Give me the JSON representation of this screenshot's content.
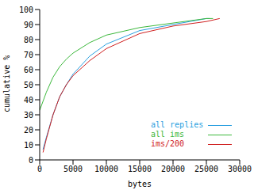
{
  "chart_data": {
    "type": "line",
    "x_label": "bytes",
    "y_label": "cumulative %",
    "xlim": [
      0,
      30000
    ],
    "xticks": [
      0,
      5000,
      10000,
      15000,
      20000,
      25000,
      30000
    ],
    "ylim": [
      0,
      100
    ],
    "yticks": [
      0,
      10,
      20,
      30,
      40,
      50,
      60,
      70,
      80,
      90,
      100
    ],
    "legend": "lower right",
    "series": [
      {
        "name": "all replies",
        "color": "#2aa0e0",
        "x": [
          500,
          1000,
          2000,
          3000,
          4000,
          5000,
          7500,
          10000,
          15000,
          20000,
          25000,
          25500
        ],
        "values": [
          7,
          15,
          30,
          42,
          50,
          57,
          69,
          77,
          86,
          90,
          94,
          94
        ]
      },
      {
        "name": "all ims",
        "color": "#3cb83c",
        "x": [
          0,
          1000,
          2000,
          3000,
          4000,
          5000,
          7500,
          10000,
          15000,
          20000,
          25000,
          26000
        ],
        "values": [
          33,
          45,
          55,
          62,
          67,
          71,
          78,
          83,
          88,
          91,
          94,
          94
        ]
      },
      {
        "name": "ims/200",
        "color": "#d02020",
        "x": [
          500,
          1000,
          2000,
          3000,
          4000,
          5000,
          7500,
          10000,
          15000,
          20000,
          25000,
          27000
        ],
        "values": [
          5,
          14,
          30,
          42,
          50,
          56,
          66,
          74,
          84,
          89,
          92,
          94
        ]
      }
    ]
  }
}
